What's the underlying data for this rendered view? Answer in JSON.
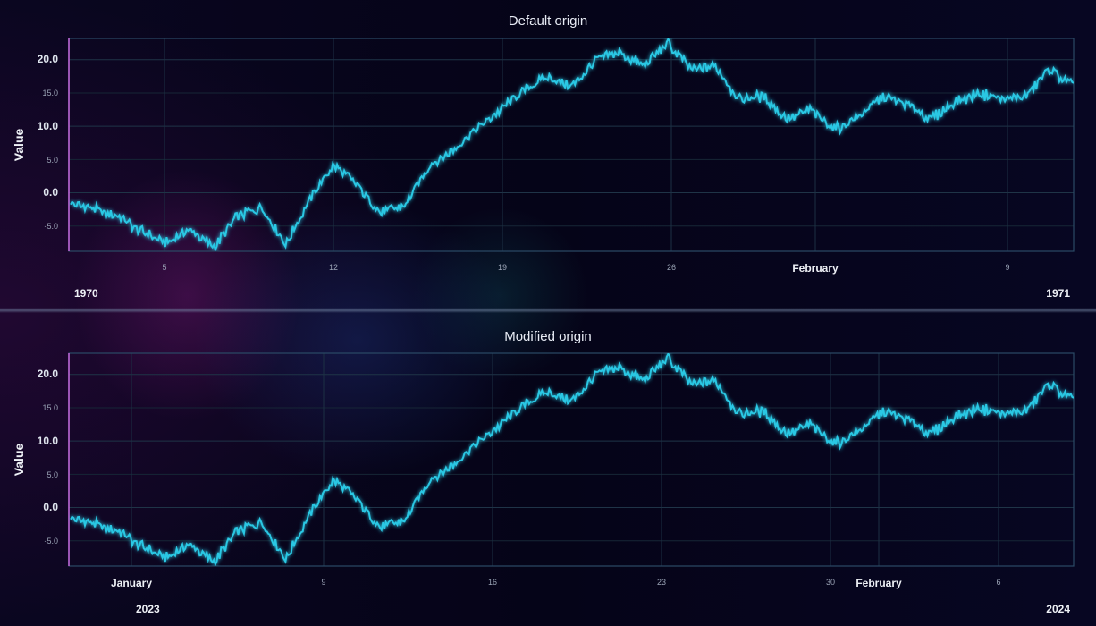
{
  "chart_data": [
    {
      "type": "line",
      "title": "Default origin",
      "xlabel": "",
      "ylabel": "Value",
      "ylim": [
        -8.8,
        23.2
      ],
      "x_start": "1970-01-01",
      "x_end": "1970-02-12",
      "grid": true,
      "y_ticks_major": [
        "20.0",
        "10.0",
        "0.0"
      ],
      "y_ticks_minor": [
        "15.0",
        "5.0",
        "-5.0"
      ],
      "x_ticks_minor": [
        "5",
        "12",
        "19",
        "26",
        "9"
      ],
      "x_ticks_major": [
        "February"
      ],
      "x_year_labels": [
        "1970",
        "1971"
      ],
      "series": [
        {
          "color": "#2ac8e4",
          "points": [
            [
              "1970-01-01",
              -1.5
            ],
            [
              "1970-01-02",
              -2.5
            ],
            [
              "1970-01-03",
              -3.6
            ],
            [
              "1970-01-04",
              -5.8
            ],
            [
              "1970-01-05",
              -7.6
            ],
            [
              "1970-01-06",
              -5.5
            ],
            [
              "1970-01-07",
              -8.2
            ],
            [
              "1970-01-08",
              -3.5
            ],
            [
              "1970-01-09",
              -2.2
            ],
            [
              "1970-01-10",
              -7.8
            ],
            [
              "1970-01-11",
              -1.0
            ],
            [
              "1970-01-12",
              4.2
            ],
            [
              "1970-01-13",
              1.2
            ],
            [
              "1970-01-14",
              -3.0
            ],
            [
              "1970-01-15",
              -2.0
            ],
            [
              "1970-01-16",
              4.0
            ],
            [
              "1970-01-17",
              6.5
            ],
            [
              "1970-01-18",
              9.5
            ],
            [
              "1970-01-19",
              12.5
            ],
            [
              "1970-01-20",
              15.5
            ],
            [
              "1970-01-21",
              17.5
            ],
            [
              "1970-01-22",
              16.0
            ],
            [
              "1970-01-23",
              20.0
            ],
            [
              "1970-01-24",
              21.0
            ],
            [
              "1970-01-25",
              19.0
            ],
            [
              "1970-01-26",
              22.5
            ],
            [
              "1970-01-27",
              18.5
            ],
            [
              "1970-01-28",
              19.0
            ],
            [
              "1970-01-29",
              14.0
            ],
            [
              "1970-01-30",
              14.5
            ],
            [
              "1970-01-31",
              11.0
            ],
            [
              "1970-02-01",
              12.5
            ],
            [
              "1970-02-02",
              9.5
            ],
            [
              "1970-02-03",
              11.5
            ],
            [
              "1970-02-04",
              14.5
            ],
            [
              "1970-02-05",
              13.5
            ],
            [
              "1970-02-06",
              11.0
            ],
            [
              "1970-02-07",
              13.5
            ],
            [
              "1970-02-08",
              15.0
            ],
            [
              "1970-02-09",
              14.0
            ],
            [
              "1970-02-10",
              14.5
            ],
            [
              "1970-02-11",
              18.5
            ],
            [
              "1970-02-12",
              16.0
            ]
          ]
        }
      ]
    },
    {
      "type": "line",
      "title": "Modified origin",
      "xlabel": "",
      "ylabel": "Value",
      "ylim": [
        -8.8,
        23.2
      ],
      "x_start": "2022-12-29",
      "x_end": "2024-02-09",
      "grid": true,
      "y_ticks_major": [
        "20.0",
        "10.0",
        "0.0"
      ],
      "y_ticks_minor": [
        "15.0",
        "5.0",
        "-5.0"
      ],
      "x_ticks_minor": [
        "9",
        "16",
        "23",
        "30",
        "6"
      ],
      "x_ticks_major": [
        "January",
        "February"
      ],
      "x_year_labels": [
        "2023",
        "2024"
      ],
      "series": [
        {
          "color": "#2ac8e4",
          "points_same_shape_as": "Default origin"
        }
      ]
    }
  ]
}
